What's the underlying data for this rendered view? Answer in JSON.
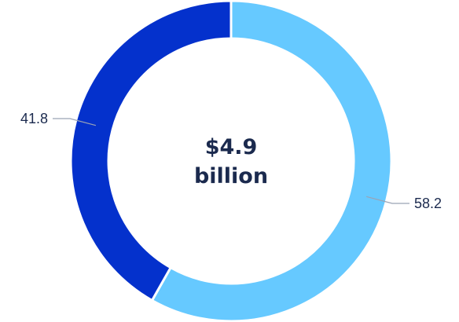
{
  "chart_data": {
    "type": "pie",
    "variant": "donut",
    "slices": [
      {
        "value": 58.2,
        "label": "58.2",
        "color": "#66c9ff"
      },
      {
        "value": 41.8,
        "label": "41.8",
        "color": "#0431cc"
      }
    ],
    "center_text": [
      "$4.9",
      "billion"
    ],
    "start_angle": "12 o'clock",
    "direction": "clockwise"
  }
}
